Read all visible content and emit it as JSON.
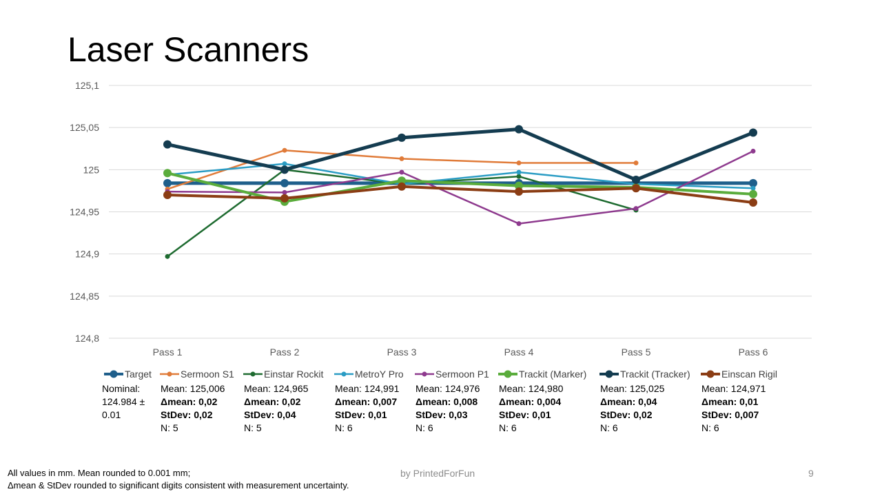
{
  "slide": {
    "title": "Laser Scanners",
    "footnote_line1": "All values in mm. Mean rounded to 0.001 mm;",
    "footnote_line2": "Δmean & StDev rounded to significant digits consistent with measurement uncertainty.",
    "credit": "by PrintedForFun",
    "page_number": "9"
  },
  "chart_data": {
    "type": "line",
    "title": "",
    "xlabel": "",
    "ylabel": "",
    "categories": [
      "Pass 1",
      "Pass 2",
      "Pass 3",
      "Pass 4",
      "Pass 5",
      "Pass 6"
    ],
    "ylim": [
      124.8,
      125.1
    ],
    "yticks": [
      124.8,
      124.85,
      124.9,
      124.95,
      125.0,
      125.05,
      125.1
    ],
    "ytick_labels": [
      "124,8",
      "124,85",
      "124,9",
      "124,95",
      "125",
      "125,05",
      "125,1"
    ],
    "grid": true,
    "legend_position": "bottom",
    "series": [
      {
        "name": "Target",
        "color": "#1f5f8b",
        "values": [
          124.984,
          124.984,
          124.984,
          124.984,
          124.984,
          124.984
        ],
        "weight": "heavy",
        "stats": [
          "Nominal:",
          "124.984 ±",
          "0.01"
        ]
      },
      {
        "name": "Sermoon S1",
        "color": "#e07b39",
        "values": [
          124.977,
          125.023,
          125.013,
          125.008,
          125.008,
          null
        ],
        "weight": "thin",
        "stats": [
          "Mean: 125,006",
          "Δmean: 0,02",
          "StDev: 0,02",
          "N: 5"
        ]
      },
      {
        "name": "Einstar Rockit",
        "color": "#1e6b30",
        "values": [
          124.897,
          125.0,
          124.983,
          124.992,
          124.952,
          null
        ],
        "weight": "thin",
        "stats": [
          "Mean: 124,965",
          "Δmean: 0,02",
          "StDev: 0,04",
          "N: 5"
        ]
      },
      {
        "name": "MetroY Pro",
        "color": "#2a9cc4",
        "values": [
          124.994,
          125.007,
          124.983,
          124.997,
          124.983,
          124.978
        ],
        "weight": "thin",
        "stats": [
          "Mean: 124,991",
          "Δmean: 0,007",
          "StDev: 0,01",
          "N: 6"
        ]
      },
      {
        "name": "Sermoon P1",
        "color": "#8e3a8e",
        "values": [
          124.974,
          124.973,
          124.997,
          124.936,
          124.954,
          125.022
        ],
        "weight": "thin",
        "stats": [
          "Mean: 124,976",
          "Δmean: 0,008",
          "StDev: 0,03",
          "N: 6"
        ]
      },
      {
        "name": "Trackit (Marker)",
        "color": "#5aac3c",
        "values": [
          124.996,
          124.962,
          124.987,
          124.981,
          124.979,
          124.971
        ],
        "weight": "heavy",
        "stats": [
          "Mean: 124,980",
          "Δmean: 0,004",
          "StDev: 0,01",
          "N: 6"
        ]
      },
      {
        "name": "Trackit (Tracker)",
        "color": "#143c50",
        "values": [
          125.03,
          125.0,
          125.038,
          125.048,
          124.988,
          125.044
        ],
        "weight": "heavy",
        "stats": [
          "Mean: 125,025",
          "Δmean: 0,04",
          "StDev: 0,02",
          "N: 6"
        ]
      },
      {
        "name": "Einscan Rigil",
        "color": "#8b3d14",
        "values": [
          124.97,
          124.966,
          124.98,
          124.974,
          124.978,
          124.961
        ],
        "weight": "heavy",
        "stats": [
          "Mean: 124,971",
          "Δmean: 0,01",
          "StDev: 0,007",
          "N: 6"
        ]
      }
    ]
  }
}
